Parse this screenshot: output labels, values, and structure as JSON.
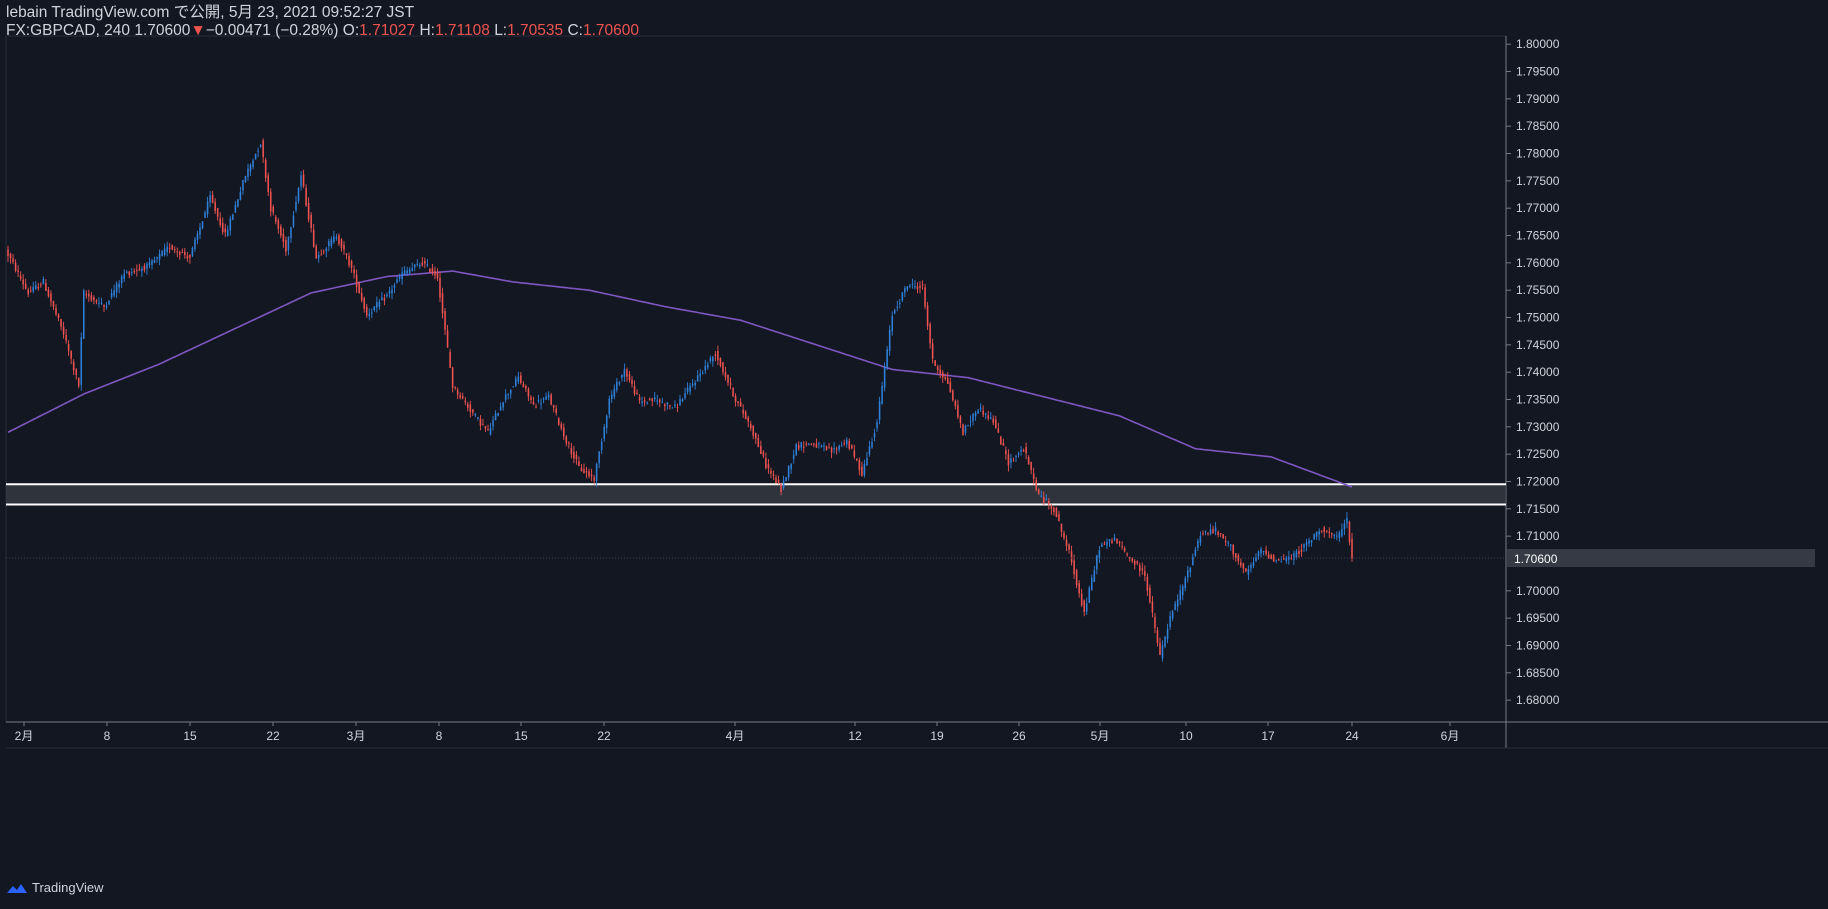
{
  "header": {
    "line1": "lebain TradingView.com で公開, 5月 23, 2021 09:52:27 JST",
    "symbol": "FX:GBPCAD, 240",
    "last": "1.70600",
    "change_arrow": "▼",
    "change": "−0.00471 (−0.28%)",
    "o_label": "O:",
    "o": "1.71027",
    "h_label": "H:",
    "h": "1.71108",
    "l_label": "L:",
    "l": "1.70535",
    "c_label": "C:",
    "c": "1.70600"
  },
  "brand": {
    "name": "TradingView",
    "icon": "tradingview-logo-icon"
  },
  "colors": {
    "background": "#131722",
    "up": "#2f80d8",
    "down": "#ef5350",
    "ma": "#7e57c2",
    "zone_line": "#ffffff",
    "zone_fill": "#3a3d46",
    "axis_text": "#d1d4dc",
    "last_price_bg": "#363a45"
  },
  "chart_data": {
    "type": "candlestick",
    "symbol": "FX:GBPCAD",
    "interval": "240",
    "ylim": [
      1.676,
      1.8015
    ],
    "y_ticks": [
      "1.80000",
      "1.79500",
      "1.79000",
      "1.78500",
      "1.78000",
      "1.77500",
      "1.77000",
      "1.76500",
      "1.76000",
      "1.75500",
      "1.75000",
      "1.74500",
      "1.74000",
      "1.73500",
      "1.73000",
      "1.72500",
      "1.72000",
      "1.71500",
      "1.71000",
      "1.70500",
      "1.70000",
      "1.69500",
      "1.69000",
      "1.68500",
      "1.68000"
    ],
    "x_ticks": [
      "2月",
      "8",
      "15",
      "22",
      "3月",
      "8",
      "15",
      "22",
      "4月",
      "12",
      "19",
      "26",
      "5月",
      "10",
      "17",
      "24",
      "6月"
    ],
    "last_price_label": "1.70600",
    "last_price": 1.706,
    "zone": {
      "top": 1.7195,
      "bottom": 1.7158
    },
    "anchors": [
      [
        0,
        1.7615
      ],
      [
        8,
        1.7545
      ],
      [
        14,
        1.7565
      ],
      [
        22,
        1.747
      ],
      [
        28,
        1.7375
      ],
      [
        30,
        1.7545
      ],
      [
        38,
        1.752
      ],
      [
        46,
        1.758
      ],
      [
        56,
        1.7595
      ],
      [
        64,
        1.763
      ],
      [
        72,
        1.761
      ],
      [
        80,
        1.772
      ],
      [
        86,
        1.765
      ],
      [
        94,
        1.776
      ],
      [
        100,
        1.782
      ],
      [
        104,
        1.77
      ],
      [
        110,
        1.7625
      ],
      [
        116,
        1.776
      ],
      [
        122,
        1.761
      ],
      [
        130,
        1.765
      ],
      [
        136,
        1.759
      ],
      [
        142,
        1.7505
      ],
      [
        150,
        1.754
      ],
      [
        156,
        1.758
      ],
      [
        164,
        1.76
      ],
      [
        170,
        1.7575
      ],
      [
        176,
        1.7375
      ],
      [
        184,
        1.7325
      ],
      [
        190,
        1.729
      ],
      [
        196,
        1.735
      ],
      [
        202,
        1.739
      ],
      [
        208,
        1.734
      ],
      [
        214,
        1.7355
      ],
      [
        220,
        1.7285
      ],
      [
        226,
        1.7225
      ],
      [
        232,
        1.7205
      ],
      [
        238,
        1.735
      ],
      [
        244,
        1.7405
      ],
      [
        250,
        1.7345
      ],
      [
        256,
        1.735
      ],
      [
        264,
        1.7335
      ],
      [
        272,
        1.7385
      ],
      [
        280,
        1.7435
      ],
      [
        288,
        1.735
      ],
      [
        294,
        1.73
      ],
      [
        300,
        1.723
      ],
      [
        306,
        1.7185
      ],
      [
        312,
        1.7265
      ],
      [
        318,
        1.727
      ],
      [
        326,
        1.7255
      ],
      [
        332,
        1.7275
      ],
      [
        338,
        1.7215
      ],
      [
        344,
        1.731
      ],
      [
        350,
        1.7505
      ],
      [
        356,
        1.756
      ],
      [
        362,
        1.7555
      ],
      [
        366,
        1.742
      ],
      [
        372,
        1.738
      ],
      [
        378,
        1.729
      ],
      [
        384,
        1.7335
      ],
      [
        390,
        1.731
      ],
      [
        396,
        1.7235
      ],
      [
        402,
        1.726
      ],
      [
        408,
        1.7175
      ],
      [
        414,
        1.715
      ],
      [
        420,
        1.707
      ],
      [
        426,
        1.696
      ],
      [
        432,
        1.708
      ],
      [
        438,
        1.7095
      ],
      [
        444,
        1.706
      ],
      [
        450,
        1.703
      ],
      [
        456,
        1.688
      ],
      [
        460,
        1.695
      ],
      [
        466,
        1.702
      ],
      [
        472,
        1.7105
      ],
      [
        478,
        1.711
      ],
      [
        484,
        1.708
      ],
      [
        490,
        1.703
      ],
      [
        496,
        1.7075
      ],
      [
        502,
        1.7055
      ],
      [
        508,
        1.706
      ],
      [
        514,
        1.7085
      ],
      [
        520,
        1.7115
      ],
      [
        526,
        1.7095
      ],
      [
        530,
        1.713
      ],
      [
        532,
        1.706
      ]
    ],
    "ma_anchors": [
      [
        0,
        1.729
      ],
      [
        30,
        1.736
      ],
      [
        60,
        1.7415
      ],
      [
        90,
        1.748
      ],
      [
        120,
        1.7545
      ],
      [
        150,
        1.7575
      ],
      [
        176,
        1.7585
      ],
      [
        200,
        1.7565
      ],
      [
        230,
        1.755
      ],
      [
        260,
        1.752
      ],
      [
        290,
        1.7495
      ],
      [
        320,
        1.745
      ],
      [
        350,
        1.7405
      ],
      [
        380,
        1.739
      ],
      [
        410,
        1.7355
      ],
      [
        440,
        1.732
      ],
      [
        470,
        1.726
      ],
      [
        500,
        1.7245
      ],
      [
        532,
        1.719
      ]
    ]
  }
}
